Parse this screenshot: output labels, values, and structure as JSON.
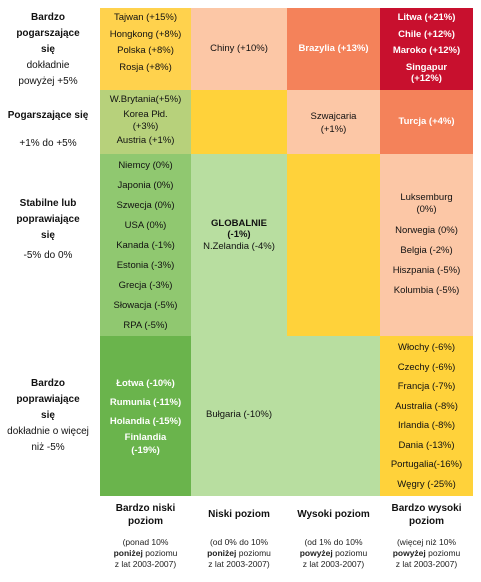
{
  "rows": [
    {
      "title": "Bardzo pogarszające się",
      "sub": "dokładnie powyżej +5%"
    },
    {
      "title": "Pogarszające się",
      "sub": "+1% do +5%"
    },
    {
      "title": "Stabilne lub poprawiające się",
      "sub": "-5% do 0%"
    },
    {
      "title": "Bardzo poprawiające się",
      "sub": "dokładnie o więcej niż -5%"
    }
  ],
  "columns": [
    {
      "title": "Bardzo niski poziom",
      "sub1": "(ponad 10%",
      "sub_bold": "poniżej",
      "sub2": "poziomu",
      "sub3": "z lat 2003-2007)"
    },
    {
      "title": "Niski poziom",
      "sub1": "(od 0% do 10%",
      "sub_bold": "poniżej",
      "sub2": "poziomu",
      "sub3": "z lat 2003-2007)"
    },
    {
      "title": "Wysoki poziom",
      "sub1": "(od 1% do 10%",
      "sub_bold": "powyżej",
      "sub2": "poziomu",
      "sub3": "z lat 2003-2007)"
    },
    {
      "title": "Bardzo wysoki poziom",
      "sub1": "(więcej niż 10%",
      "sub_bold": "powyżej",
      "sub2": "poziomu",
      "sub3": "z lat 2003-2007)"
    }
  ],
  "cells": {
    "r1c1": [
      "Tajwan (+15%)",
      "Hongkong (+8%)",
      "Polska (+8%)",
      "Rosja (+8%)"
    ],
    "r1c2": [
      "Chiny (+10%)"
    ],
    "r1c3": [
      "Brazylia (+13%)"
    ],
    "r1c4": [
      "Litwa (+21%)",
      "Chile (+12%)",
      "Maroko (+12%)",
      "Singapur (+12%)"
    ],
    "r2c1": [
      "W.Brytania(+5%)",
      "Korea Płd. (+3%)",
      "Austria (+1%)"
    ],
    "r2c3": [
      "Szwajcaria (+1%)"
    ],
    "r2c4": [
      "Turcja (+4%)"
    ],
    "r3c1": [
      "Niemcy (0%)",
      "Japonia (0%)",
      "Szwecja (0%)",
      "USA (0%)",
      "Kanada (-1%)",
      "Estonia (-3%)",
      "Grecja (-3%)",
      "Słowacja (-5%)",
      "RPA (-5%)"
    ],
    "r3c2": [
      "GLOBALNIE (-1%)",
      "N.Zelandia (-4%)"
    ],
    "r3c4": [
      "Luksemburg (0%)",
      "Norwegia (0%)",
      "Belgia (-2%)",
      "Hiszpania (-5%)",
      "Kolumbia (-5%)"
    ],
    "r4c1": [
      "Łotwa (-10%)",
      "Rumunia (-11%)",
      "Holandia (-15%)",
      "Finlandia (-19%)"
    ],
    "r4c2": [
      "Bułgaria (-10%)"
    ],
    "r4c4": [
      "Włochy (-6%)",
      "Czechy (-6%)",
      "Francja (-7%)",
      "Australia (-8%)",
      "Irlandia (-8%)",
      "Dania (-13%)",
      "Portugalia(-16%)",
      "Węgry (-25%)"
    ]
  },
  "colors": {
    "r1c1": "#ffd24d",
    "r1c2": "#fcc7a6",
    "r1c3": "#f4825a",
    "r1c4": "#c8102e",
    "r2c1": "#b7d17b",
    "r2c2": "#ffd23a",
    "r2c3": "#fcc7a6",
    "r2c4": "#f4825a",
    "r3c1": "#90c870",
    "r3c2": "#b8dea0",
    "r3c3": "#ffd23a",
    "r3c4": "#fcc7a6",
    "r4c1": "#6ab44c",
    "r4c2": "#b8dea0",
    "r4c3": "#b8dea0",
    "r4c4": "#ffd23a"
  }
}
